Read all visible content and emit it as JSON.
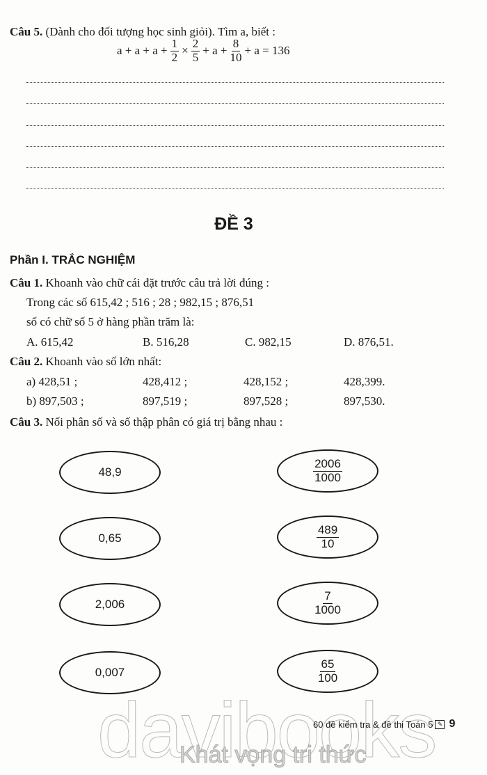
{
  "cau5": {
    "label": "Câu 5.",
    "text": "(Dành cho đối tượng học sinh giỏi). Tìm a, biết :",
    "equation": {
      "p1": "a + a + a +",
      "f1_num": "1",
      "f1_den": "2",
      "op1": "×",
      "f2_num": "2",
      "f2_den": "5",
      "p2": "+ a +",
      "f3_num": "8",
      "f3_den": "10",
      "p3": "+ a = 136"
    }
  },
  "de_title": "ĐỀ 3",
  "section": "Phần I. TRẮC NGHIỆM",
  "cau1": {
    "label": "Câu 1.",
    "text": "Khoanh vào chữ cái đặt trước câu trả lời đúng :",
    "line1": "Trong các số 615,42 ; 516 ; 28 ; 982,15 ; 876,51",
    "line2": "số có chữ số 5 ở hàng phần trăm là:",
    "options": [
      "A. 615,42",
      "B. 516,28",
      "C. 982,15",
      "D. 876,51."
    ]
  },
  "cau2": {
    "label": "Câu 2.",
    "text": "Khoanh vào số lớn nhất:",
    "rows": [
      [
        "a) 428,51 ;",
        "428,412 ;",
        "428,152 ;",
        "428,399."
      ],
      [
        "b) 897,503 ;",
        "897,519 ;",
        "897,528 ;",
        "897,530."
      ]
    ]
  },
  "cau3": {
    "label": "Câu 3.",
    "text": "Nối phân số và số thập phân có giá trị bằng nhau :",
    "decimals": [
      "48,9",
      "0,65",
      "2,006",
      "0,007"
    ],
    "fractions": [
      {
        "num": "2006",
        "den": "1000"
      },
      {
        "num": "489",
        "den": "10"
      },
      {
        "num": "7",
        "den": "1000"
      },
      {
        "num": "65",
        "den": "100"
      }
    ]
  },
  "footer": {
    "text": "60 đề kiểm tra & đề thi Toán 5",
    "icon": "pencil-book-icon",
    "page": "9"
  },
  "watermark": {
    "brand": "davibooks",
    "slogan": "Khát vọng tri thức"
  }
}
